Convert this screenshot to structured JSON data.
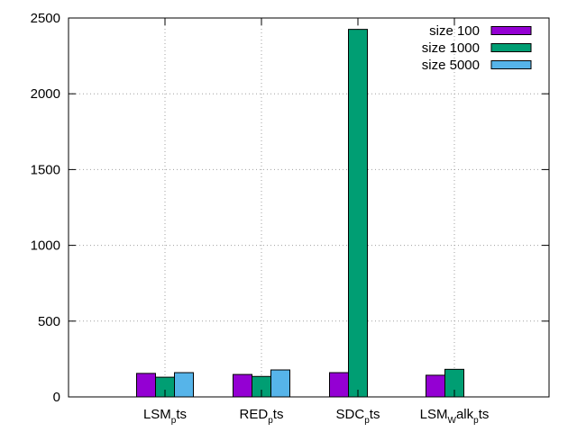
{
  "chart_data": {
    "type": "bar",
    "title": "",
    "xlabel": "",
    "ylabel": "",
    "ylim": [
      0,
      2500
    ],
    "yticks": [
      0,
      500,
      1000,
      1500,
      2000,
      2500
    ],
    "grid": true,
    "legend_position": "top-right",
    "categories": [
      {
        "id": "LSM_pts",
        "base": "LSM",
        "sub": "p",
        "rest": "ts"
      },
      {
        "id": "RED_pts",
        "base": "RED",
        "sub": "p",
        "rest": "ts"
      },
      {
        "id": "SDC_pts",
        "base": "SDC",
        "sub": "p",
        "rest": "ts"
      },
      {
        "id": "LSM_Walk_pts",
        "base": "LSM",
        "sub": "W",
        "rest": "alk",
        "sub2": "p",
        "rest2": "ts"
      }
    ],
    "series": [
      {
        "name": "size 100",
        "color": "#9400d3",
        "values": [
          155,
          148,
          160,
          143
        ]
      },
      {
        "name": "size 1000",
        "color": "#009e73",
        "values": [
          130,
          135,
          2425,
          182
        ]
      },
      {
        "name": "size 5000",
        "color": "#56b4e9",
        "values": [
          160,
          178,
          null,
          null
        ]
      }
    ]
  }
}
